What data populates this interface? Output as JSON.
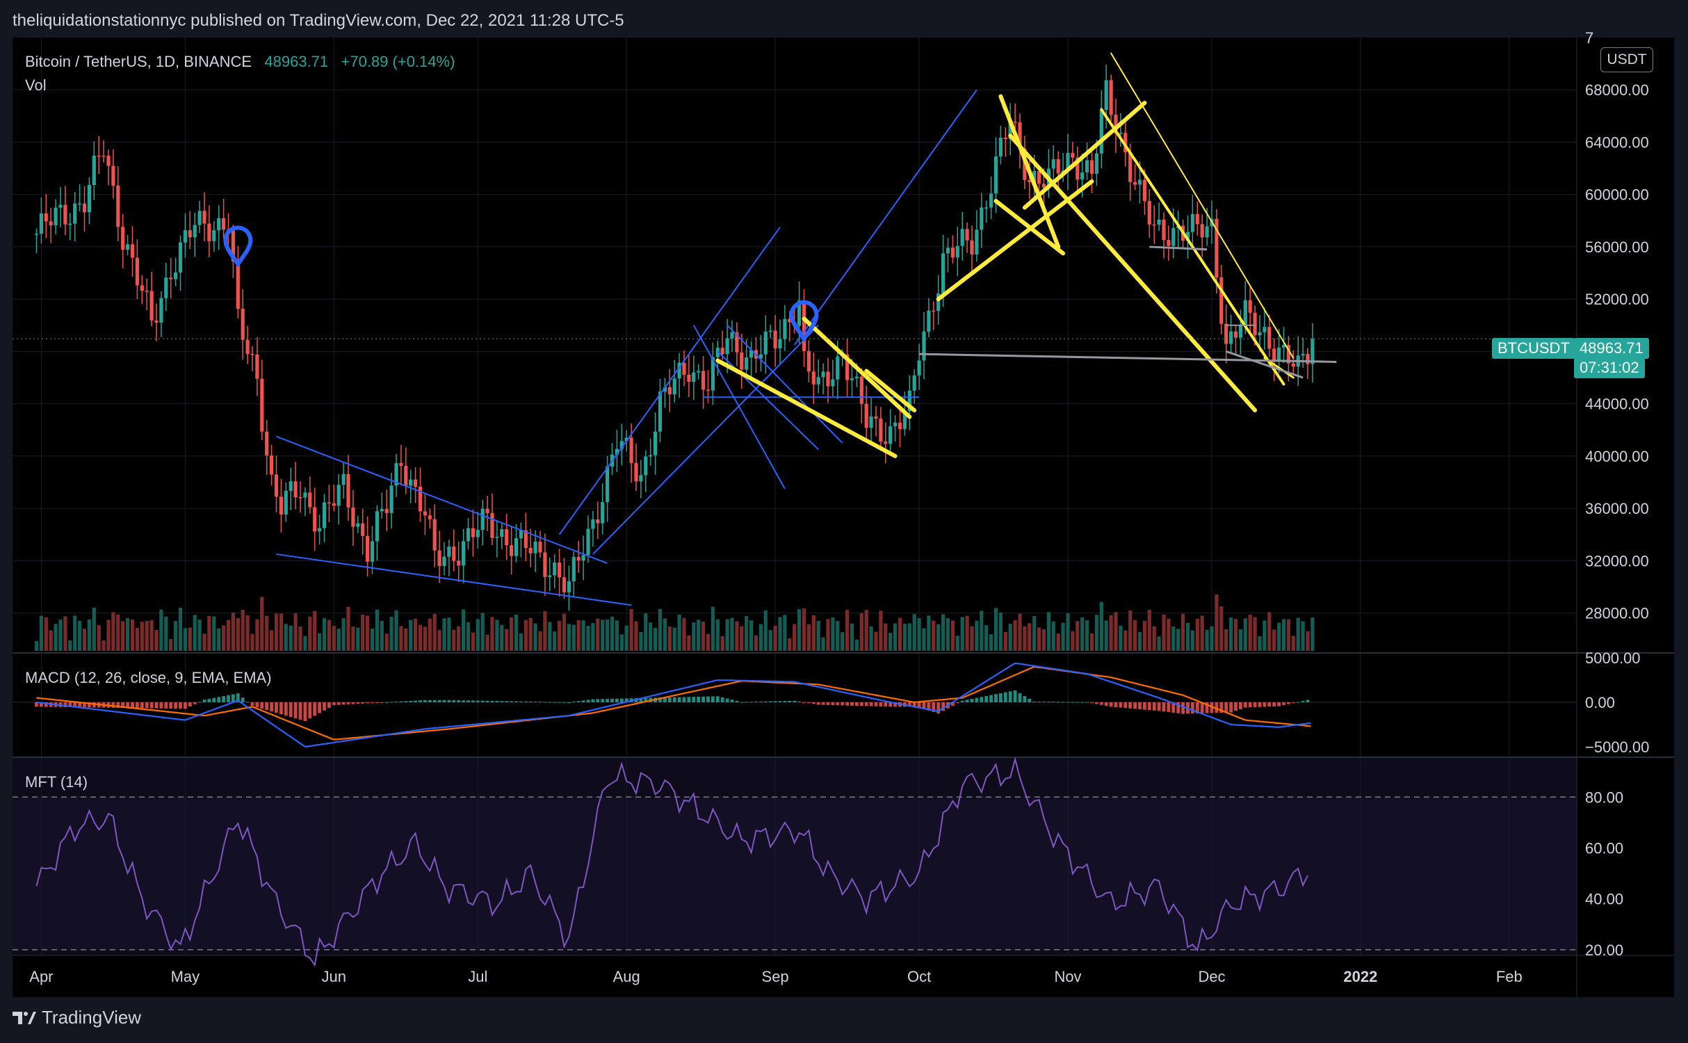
{
  "publish_line": "theliquidationstationnyc published on TradingView.com, Dec 22, 2021 11:28 UTC-5",
  "symbol_line": "Bitcoin / TetherUS, 1D, BINANCE",
  "last_price": "48963.71",
  "change": "+70.89 (+0.14%)",
  "volume_label": "Vol",
  "scale_button": "USDT",
  "ticker_badge": "BTCUSDT",
  "price_badge": "48963.71",
  "countdown_badge": "07:31:02",
  "macd_label": "MACD (12, 26, close, 9, EMA, EMA)",
  "mft_label": "MFT (14)",
  "brand": "TradingView",
  "colors": {
    "up": "#26a69a",
    "down": "#ef5350",
    "drawing_yellow": "#ffeb3b",
    "drawing_blue": "#2962ff",
    "macd": "#2962ff",
    "signal": "#ff6d00",
    "mft": "#7e57c2"
  },
  "chart_data": [
    {
      "type": "candlestick",
      "title": "Bitcoin / TetherUS, 1D, BINANCE",
      "ylim": [
        25000,
        72000
      ],
      "y_ticks": [
        "7",
        "68000.00",
        "64000.00",
        "60000.00",
        "56000.00",
        "52000.00",
        "44000.00",
        "40000.00",
        "36000.00",
        "32000.00",
        "28000.00"
      ],
      "x_ticks": [
        "Apr",
        "May",
        "Jun",
        "Jul",
        "Aug",
        "Sep",
        "Oct",
        "Nov",
        "Dec",
        "2022",
        "Feb"
      ],
      "price_path": [
        [
          "2021-03-31",
          57000
        ],
        [
          "2021-04-05",
          58500
        ],
        [
          "2021-04-10",
          59500
        ],
        [
          "2021-04-14",
          63500
        ],
        [
          "2021-04-18",
          57000
        ],
        [
          "2021-04-24",
          50000
        ],
        [
          "2021-04-28",
          54500
        ],
        [
          "2021-05-03",
          57500
        ],
        [
          "2021-05-10",
          58000
        ],
        [
          "2021-05-12",
          50000
        ],
        [
          "2021-05-16",
          46000
        ],
        [
          "2021-05-19",
          38000
        ],
        [
          "2021-05-21",
          36000
        ],
        [
          "2021-05-25",
          37500
        ],
        [
          "2021-05-29",
          35000
        ],
        [
          "2021-06-03",
          37500
        ],
        [
          "2021-06-08",
          33000
        ],
        [
          "2021-06-12",
          36000
        ],
        [
          "2021-06-15",
          40000
        ],
        [
          "2021-06-20",
          35500
        ],
        [
          "2021-06-22",
          32000
        ],
        [
          "2021-06-27",
          33000
        ],
        [
          "2021-07-03",
          35000
        ],
        [
          "2021-07-08",
          33500
        ],
        [
          "2021-07-13",
          32500
        ],
        [
          "2021-07-17",
          31500
        ],
        [
          "2021-07-20",
          29800
        ],
        [
          "2021-07-25",
          35000
        ],
        [
          "2021-07-30",
          41000
        ],
        [
          "2021-08-04",
          38500
        ],
        [
          "2021-08-08",
          44000
        ],
        [
          "2021-08-14",
          47000
        ],
        [
          "2021-08-18",
          45500
        ],
        [
          "2021-08-22",
          49000
        ],
        [
          "2021-08-27",
          47500
        ],
        [
          "2021-09-01",
          48800
        ],
        [
          "2021-09-06",
          52000
        ],
        [
          "2021-09-07",
          47000
        ],
        [
          "2021-09-10",
          45000
        ],
        [
          "2021-09-15",
          48000
        ],
        [
          "2021-09-20",
          42500
        ],
        [
          "2021-09-25",
          42000
        ],
        [
          "2021-09-29",
          43500
        ],
        [
          "2021-10-01",
          48000
        ],
        [
          "2021-10-06",
          55000
        ],
        [
          "2021-10-12",
          56500
        ],
        [
          "2021-10-16",
          61000
        ],
        [
          "2021-10-20",
          65500
        ],
        [
          "2021-10-24",
          61500
        ],
        [
          "2021-10-28",
          61000
        ],
        [
          "2021-11-02",
          63000
        ],
        [
          "2021-11-06",
          61500
        ],
        [
          "2021-11-09",
          67500
        ],
        [
          "2021-11-12",
          64500
        ],
        [
          "2021-11-16",
          60000
        ],
        [
          "2021-11-19",
          57000
        ],
        [
          "2021-11-24",
          57500
        ],
        [
          "2021-11-28",
          57000
        ],
        [
          "2021-12-01",
          57500
        ],
        [
          "2021-12-04",
          48500
        ],
        [
          "2021-12-08",
          50500
        ],
        [
          "2021-12-12",
          49500
        ],
        [
          "2021-12-16",
          47500
        ],
        [
          "2021-12-19",
          46500
        ],
        [
          "2021-12-22",
          48963.71
        ]
      ],
      "last_price": 48963.71
    },
    {
      "type": "line",
      "title": "MACD (12, 26, close, 9, EMA, EMA)",
      "ylim": [
        -6000,
        6000
      ],
      "y_ticks": [
        "5000.00",
        "0.00",
        "−5000.00"
      ],
      "series": [
        {
          "values_path": [
            [
              "2021-03-31",
              0
            ],
            [
              "2021-05-01",
              -2000
            ],
            [
              "2021-05-12",
              200
            ],
            [
              "2021-05-26",
              -5000
            ],
            [
              "2021-06-20",
              -3000
            ],
            [
              "2021-07-20",
              -1500
            ],
            [
              "2021-08-20",
              2500
            ],
            [
              "2021-09-05",
              2300
            ],
            [
              "2021-09-25",
              0
            ],
            [
              "2021-10-05",
              -1000
            ],
            [
              "2021-10-21",
              4400
            ],
            [
              "2021-11-05",
              3200
            ],
            [
              "2021-11-20",
              500
            ],
            [
              "2021-12-05",
              -2500
            ],
            [
              "2021-12-15",
              -2800
            ],
            [
              "2021-12-22",
              -2300
            ]
          ]
        },
        {
          "values_path": [
            [
              "2021-03-31",
              500
            ],
            [
              "2021-05-05",
              -1500
            ],
            [
              "2021-05-15",
              -500
            ],
            [
              "2021-06-01",
              -4200
            ],
            [
              "2021-06-25",
              -3000
            ],
            [
              "2021-07-25",
              -1200
            ],
            [
              "2021-08-25",
              2400
            ],
            [
              "2021-09-10",
              2000
            ],
            [
              "2021-09-30",
              0
            ],
            [
              "2021-10-10",
              500
            ],
            [
              "2021-10-25",
              4000
            ],
            [
              "2021-11-10",
              2800
            ],
            [
              "2021-11-25",
              800
            ],
            [
              "2021-12-08",
              -2000
            ],
            [
              "2021-12-22",
              -2700
            ]
          ]
        }
      ]
    },
    {
      "type": "line",
      "title": "MFT (14)",
      "ylim": [
        12,
        88
      ],
      "y_ticks": [
        "80.00",
        "60.00",
        "40.00",
        "20.00"
      ],
      "levels": [
        80,
        20
      ],
      "series": [
        {
          "values_path": [
            [
              "2021-03-31",
              45
            ],
            [
              "2021-04-08",
              68
            ],
            [
              "2021-04-15",
              72
            ],
            [
              "2021-04-22",
              40
            ],
            [
              "2021-04-30",
              20
            ],
            [
              "2021-05-12",
              72
            ],
            [
              "2021-05-20",
              38
            ],
            [
              "2021-05-28",
              16
            ],
            [
              "2021-06-10",
              48
            ],
            [
              "2021-06-18",
              62
            ],
            [
              "2021-06-24",
              45
            ],
            [
              "2021-07-05",
              38
            ],
            [
              "2021-07-12",
              50
            ],
            [
              "2021-07-20",
              24
            ],
            [
              "2021-07-28",
              88
            ],
            [
              "2021-08-08",
              85
            ],
            [
              "2021-08-25",
              63
            ],
            [
              "2021-09-06",
              67
            ],
            [
              "2021-09-12",
              50
            ],
            [
              "2021-09-20",
              40
            ],
            [
              "2021-10-01",
              50
            ],
            [
              "2021-10-10",
              85
            ],
            [
              "2021-10-21",
              90
            ],
            [
              "2021-10-30",
              62
            ],
            [
              "2021-11-10",
              38
            ],
            [
              "2021-11-20",
              45
            ],
            [
              "2021-11-28",
              20
            ],
            [
              "2021-12-05",
              38
            ],
            [
              "2021-12-15",
              44
            ],
            [
              "2021-12-22",
              52
            ]
          ]
        }
      ]
    }
  ]
}
